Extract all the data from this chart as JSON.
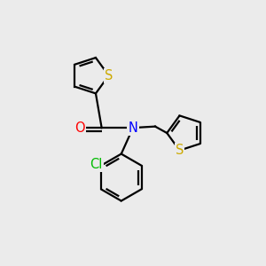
{
  "background_color": "#ebebeb",
  "atom_colors": {
    "S": "#ccaa00",
    "N": "#0000ff",
    "O": "#ff0000",
    "Cl": "#00bb00",
    "C": "#000000"
  },
  "line_color": "#000000",
  "line_width": 1.6,
  "font_size_atoms": 10.5,
  "figsize": [
    3.0,
    3.0
  ],
  "dpi": 100
}
